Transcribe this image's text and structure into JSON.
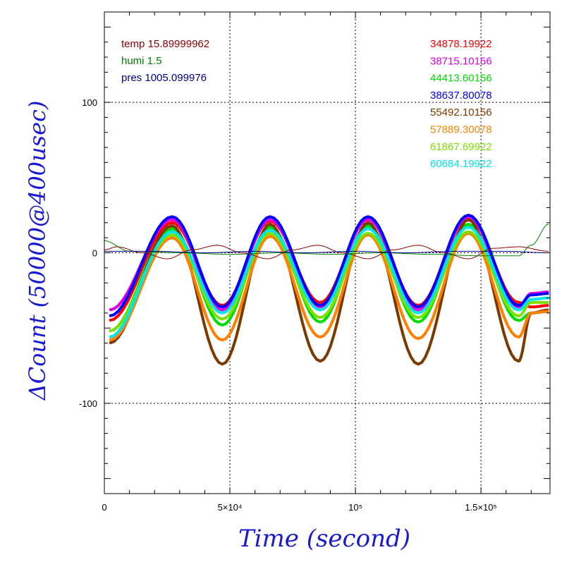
{
  "chart_data": {
    "type": "line",
    "xlabel": "Time (second)",
    "ylabel": "ΔCount (50000@400usec)",
    "xlim": [
      0,
      177500
    ],
    "ylim": [
      -160,
      160
    ],
    "x_ticks": [
      {
        "value": 0,
        "label": "0"
      },
      {
        "value": 50000,
        "label": "5×10⁴"
      },
      {
        "value": 100000,
        "label": "10⁵"
      },
      {
        "value": 150000,
        "label": "1.5×10⁵"
      }
    ],
    "y_ticks": [
      {
        "value": 100,
        "label": "100"
      },
      {
        "value": 0,
        "label": "0"
      },
      {
        "value": -100,
        "label": "-100"
      }
    ],
    "grid": true,
    "legend_left": [
      {
        "label": "temp 15.89999962",
        "color": "#8b0000"
      },
      {
        "label": "humi 1.5",
        "color": "#008000"
      },
      {
        "label": "pres 1005.099976",
        "color": "#00008b"
      }
    ],
    "legend_right": [
      {
        "label": "34878.19922",
        "color": "#ff0000"
      },
      {
        "label": "38715.10156",
        "color": "#e000e0"
      },
      {
        "label": "44413.60156",
        "color": "#00dd00"
      },
      {
        "label": "38637.80078",
        "color": "#0000ff"
      },
      {
        "label": "55492.10156",
        "color": "#7a3a00"
      },
      {
        "label": "57889.30078",
        "color": "#ff8000"
      },
      {
        "label": "61867.69922",
        "color": "#7de000"
      },
      {
        "label": "60684.19922",
        "color": "#00e5e5"
      }
    ],
    "series": [
      {
        "name": "34878.19922",
        "color": "#ff0000",
        "x": [
          2000,
          27000,
          47000,
          66000,
          86000,
          105000,
          125000,
          145000,
          165000,
          170000,
          177000
        ],
        "y": [
          -45,
          20,
          -35,
          21,
          -33,
          22,
          -35,
          23,
          -33,
          -36,
          -35
        ]
      },
      {
        "name": "38715.10156",
        "color": "#e000e0",
        "x": [
          2000,
          27000,
          47000,
          66000,
          86000,
          105000,
          125000,
          145000,
          165000,
          170000,
          177000
        ],
        "y": [
          -38,
          22,
          -38,
          22,
          -36,
          22,
          -38,
          23,
          -36,
          -27,
          -26
        ]
      },
      {
        "name": "44413.60156",
        "color": "#00dd00",
        "x": [
          2000,
          27000,
          47000,
          66000,
          86000,
          105000,
          125000,
          145000,
          165000,
          170000,
          177000
        ],
        "y": [
          -52,
          16,
          -48,
          17,
          -46,
          18,
          -46,
          19,
          -45,
          -40,
          -39
        ]
      },
      {
        "name": "38637.80078",
        "color": "#0000ff",
        "x": [
          2000,
          27000,
          47000,
          66000,
          86000,
          105000,
          125000,
          145000,
          165000,
          170000,
          177000
        ],
        "y": [
          -42,
          24,
          -36,
          24,
          -35,
          24,
          -36,
          25,
          -35,
          -28,
          -27
        ]
      },
      {
        "name": "55492.10156",
        "color": "#7a3a00",
        "x": [
          2000,
          27000,
          47000,
          66000,
          86000,
          105000,
          125000,
          145000,
          165000,
          170000,
          177000
        ],
        "y": [
          -60,
          18,
          -74,
          19,
          -72,
          20,
          -74,
          22,
          -72,
          -40,
          -38
        ]
      },
      {
        "name": "57889.30078",
        "color": "#ff8000",
        "x": [
          2000,
          27000,
          47000,
          66000,
          86000,
          105000,
          125000,
          145000,
          165000,
          170000,
          177000
        ],
        "y": [
          -58,
          10,
          -58,
          11,
          -56,
          12,
          -57,
          13,
          -56,
          -40,
          -39
        ]
      },
      {
        "name": "61867.69922",
        "color": "#7de000",
        "x": [
          2000,
          27000,
          47000,
          66000,
          86000,
          105000,
          125000,
          145000,
          165000,
          170000,
          177000
        ],
        "y": [
          -52,
          12,
          -44,
          13,
          -43,
          13,
          -43,
          14,
          -42,
          -33,
          -33
        ]
      },
      {
        "name": "60684.19922",
        "color": "#00e5e5",
        "x": [
          2000,
          27000,
          47000,
          66000,
          86000,
          105000,
          125000,
          145000,
          165000,
          170000,
          177000
        ],
        "y": [
          -56,
          14,
          -40,
          15,
          -38,
          16,
          -40,
          17,
          -38,
          -31,
          -30
        ]
      },
      {
        "name": "temp 15.89999962",
        "color": "#8b0000",
        "x": [
          0,
          5000,
          15000,
          25000,
          35000,
          45000,
          55000,
          65000,
          75000,
          85000,
          95000,
          105000,
          115000,
          125000,
          135000,
          145000,
          155000,
          165000,
          177000
        ],
        "y": [
          2,
          4,
          0,
          -4,
          2,
          5,
          0,
          -4,
          2,
          5,
          0,
          -4,
          2,
          5,
          0,
          -4,
          3,
          4,
          1
        ]
      },
      {
        "name": "humi 1.5",
        "color": "#008000",
        "x": [
          0,
          10000,
          30000,
          50000,
          70000,
          90000,
          110000,
          130000,
          150000,
          165000,
          170000,
          177000
        ],
        "y": [
          8,
          1,
          0,
          -1,
          0,
          -1,
          0,
          -1,
          -2,
          -2,
          5,
          19
        ]
      },
      {
        "name": "pres 1005.099976",
        "color": "#00008b",
        "x": [
          0,
          20000,
          40000,
          60000,
          80000,
          100000,
          120000,
          140000,
          160000,
          177000
        ],
        "y": [
          1,
          1,
          0,
          1,
          0,
          1,
          0,
          1,
          1,
          0
        ]
      }
    ]
  }
}
